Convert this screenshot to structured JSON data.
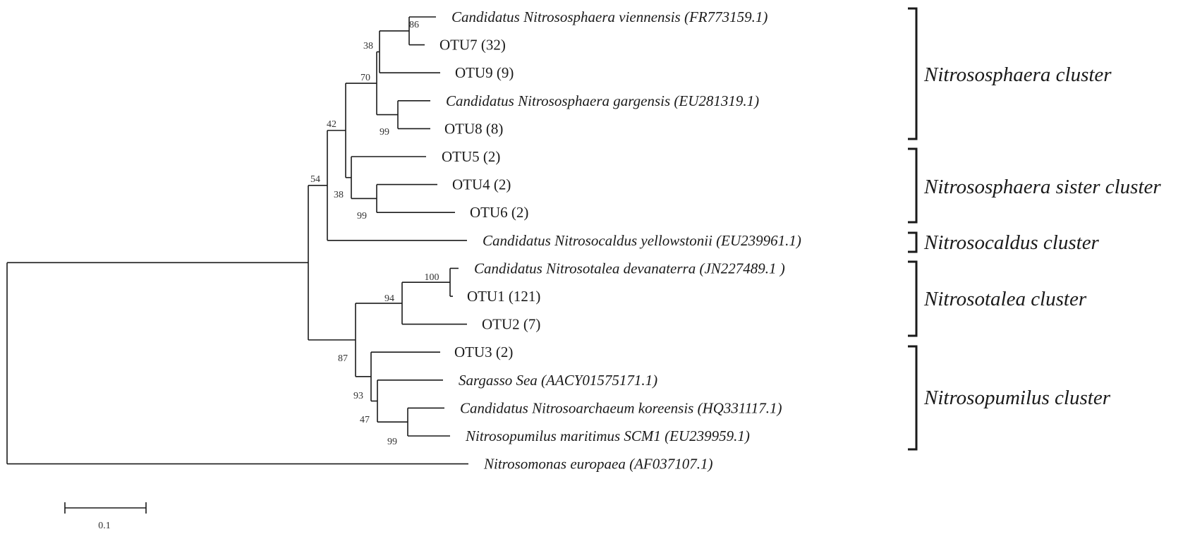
{
  "tree": {
    "leaves": [
      {
        "id": "viennensis",
        "label": "Candidatus Nitrososphaera viennensis (FR773159.1)",
        "italic": true
      },
      {
        "id": "otu7",
        "label": "OTU7 (32)",
        "italic": false
      },
      {
        "id": "otu9",
        "label": "OTU9 (9)",
        "italic": false
      },
      {
        "id": "gargensis",
        "label": "Candidatus Nitrososphaera gargensis (EU281319.1)",
        "italic": true
      },
      {
        "id": "otu8",
        "label": "OTU8 (8)",
        "italic": false
      },
      {
        "id": "otu5",
        "label": "OTU5 (2)",
        "italic": false
      },
      {
        "id": "otu4",
        "label": "OTU4 (2)",
        "italic": false
      },
      {
        "id": "otu6",
        "label": "OTU6 (2)",
        "italic": false
      },
      {
        "id": "yellowstonii",
        "label": "Candidatus Nitrosocaldus yellowstonii (EU239961.1)",
        "italic": true
      },
      {
        "id": "devanaterra",
        "label": "Candidatus Nitrosotalea devanaterra (JN227489.1 )",
        "italic": true
      },
      {
        "id": "otu1",
        "label": "OTU1 (121)",
        "italic": false
      },
      {
        "id": "otu2",
        "label": "OTU2 (7)",
        "italic": false
      },
      {
        "id": "otu3",
        "label": "OTU3 (2)",
        "italic": false
      },
      {
        "id": "sargasso",
        "label": "Sargasso Sea (AACY01575171.1)",
        "italic": true
      },
      {
        "id": "koreensis",
        "label": "Candidatus Nitrosoarchaeum koreensis (HQ331117.1)",
        "italic": true
      },
      {
        "id": "maritimus",
        "label": "Nitrosopumilus maritimus SCM1 (EU239959.1)",
        "italic": true
      },
      {
        "id": "europaea",
        "label": "Nitrosomonas europaea (AF037107.1)",
        "italic": true
      }
    ],
    "bootstrap": [
      {
        "node": "viennensis-otu7",
        "value": "86"
      },
      {
        "node": "otu7-otu9-group",
        "value": "38"
      },
      {
        "node": "nitrososphaera-core",
        "value": "70"
      },
      {
        "node": "nitrososphaera-all",
        "value": "42"
      },
      {
        "node": "gargensis-otu8",
        "value": "99"
      },
      {
        "node": "otu4-otu6",
        "value": "99"
      },
      {
        "node": "otu5-group",
        "value": "38"
      },
      {
        "node": "archaea",
        "value": "54"
      },
      {
        "node": "devanaterra-otu1",
        "value": "100"
      },
      {
        "node": "nitrosotalea",
        "value": "94"
      },
      {
        "node": "nitrosotalea-nitrosopumilus",
        "value": "87"
      },
      {
        "node": "nitrosopumilus",
        "value": "93"
      },
      {
        "node": "sargasso-group",
        "value": "47"
      },
      {
        "node": "koreensis-maritimus",
        "value": "99"
      }
    ],
    "scale": {
      "label": "0.1"
    }
  },
  "clusters": [
    {
      "id": "nitrososphaera",
      "label": "Nitrososphaera cluster"
    },
    {
      "id": "nitrososphaera-sister",
      "label": "Nitrososphaera sister cluster"
    },
    {
      "id": "nitrosocaldus",
      "label": "Nitrosocaldus cluster"
    },
    {
      "id": "nitrosotalea",
      "label": "Nitrosotalea cluster"
    },
    {
      "id": "nitrosopumilus",
      "label": "Nitrosopumilus cluster"
    }
  ]
}
